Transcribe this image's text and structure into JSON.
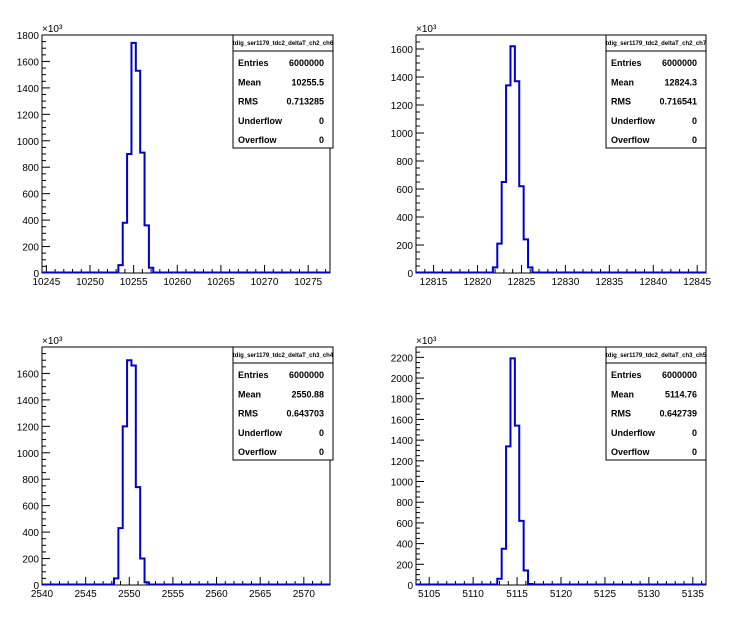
{
  "chart_data": [
    {
      "type": "histogram",
      "stats": {
        "name": "tdig_ser1179_tdc2_deltaT_ch2_ch6",
        "rows": [
          {
            "label": "Entries",
            "value": "6000000"
          },
          {
            "label": "Mean",
            "value": "10255.5"
          },
          {
            "label": "RMS",
            "value": "0.713285"
          },
          {
            "label": "Underflow",
            "value": "0"
          },
          {
            "label": "Overflow",
            "value": "0"
          }
        ]
      },
      "xlim": [
        10244.5,
        10277.5
      ],
      "ylim": [
        0,
        1800
      ],
      "y_multiplier": "×10³",
      "xticks": [
        "10245",
        "10250",
        "10255",
        "10260",
        "10265",
        "10270",
        "10275"
      ],
      "yticks": [
        "0",
        "200",
        "400",
        "600",
        "800",
        "1000",
        "1200",
        "1400",
        "1600",
        "1800"
      ],
      "bin_width": 0.5,
      "bins": [
        {
          "x": 10253.5,
          "y": 60
        },
        {
          "x": 10254.0,
          "y": 380
        },
        {
          "x": 10254.5,
          "y": 900
        },
        {
          "x": 10255.0,
          "y": 1740
        },
        {
          "x": 10255.5,
          "y": 1530
        },
        {
          "x": 10256.0,
          "y": 910
        },
        {
          "x": 10256.5,
          "y": 360
        },
        {
          "x": 10257.0,
          "y": 40
        }
      ]
    },
    {
      "type": "histogram",
      "stats": {
        "name": "tdig_ser1179_tdc2_deltaT_ch2_ch7",
        "rows": [
          {
            "label": "Entries",
            "value": "6000000"
          },
          {
            "label": "Mean",
            "value": "12824.3"
          },
          {
            "label": "RMS",
            "value": "0.716541"
          },
          {
            "label": "Underflow",
            "value": "0"
          },
          {
            "label": "Overflow",
            "value": "0"
          }
        ]
      },
      "xlim": [
        12813,
        12846
      ],
      "ylim": [
        0,
        1700
      ],
      "y_multiplier": "×10³",
      "xticks": [
        "12815",
        "12820",
        "12825",
        "12830",
        "12835",
        "12840",
        "12845"
      ],
      "yticks": [
        "0",
        "200",
        "400",
        "600",
        "800",
        "1000",
        "1200",
        "1400",
        "1600"
      ],
      "bin_width": 0.5,
      "bins": [
        {
          "x": 12822.0,
          "y": 40
        },
        {
          "x": 12822.5,
          "y": 210
        },
        {
          "x": 12823.0,
          "y": 650
        },
        {
          "x": 12823.5,
          "y": 1340
        },
        {
          "x": 12824.0,
          "y": 1620
        },
        {
          "x": 12824.5,
          "y": 1370
        },
        {
          "x": 12825.0,
          "y": 620
        },
        {
          "x": 12825.5,
          "y": 240
        },
        {
          "x": 12826.0,
          "y": 40
        }
      ]
    },
    {
      "type": "histogram",
      "stats": {
        "name": "tdig_ser1179_tdc2_deltaT_ch3_ch4",
        "rows": [
          {
            "label": "Entries",
            "value": "6000000"
          },
          {
            "label": "Mean",
            "value": "2550.88"
          },
          {
            "label": "RMS",
            "value": "0.643703"
          },
          {
            "label": "Underflow",
            "value": "0"
          },
          {
            "label": "Overflow",
            "value": "0"
          }
        ]
      },
      "xlim": [
        2540,
        2573
      ],
      "ylim": [
        0,
        1800
      ],
      "y_multiplier": "×10³",
      "xticks": [
        "2540",
        "2545",
        "2550",
        "2555",
        "2560",
        "2565",
        "2570"
      ],
      "yticks": [
        "0",
        "200",
        "400",
        "600",
        "800",
        "1000",
        "1200",
        "1400",
        "1600"
      ],
      "bin_width": 0.5,
      "bins": [
        {
          "x": 2548.5,
          "y": 50
        },
        {
          "x": 2549.0,
          "y": 430
        },
        {
          "x": 2549.5,
          "y": 1200
        },
        {
          "x": 2550.0,
          "y": 1700
        },
        {
          "x": 2550.5,
          "y": 1660
        },
        {
          "x": 2551.0,
          "y": 740
        },
        {
          "x": 2551.5,
          "y": 200
        },
        {
          "x": 2552.0,
          "y": 20
        }
      ]
    },
    {
      "type": "histogram",
      "stats": {
        "name": "tdig_ser1179_tdc2_deltaT_ch3_ch5",
        "rows": [
          {
            "label": "Entries",
            "value": "6000000"
          },
          {
            "label": "Mean",
            "value": "5114.76"
          },
          {
            "label": "RMS",
            "value": "0.642739"
          },
          {
            "label": "Underflow",
            "value": "0"
          },
          {
            "label": "Overflow",
            "value": "0"
          }
        ]
      },
      "xlim": [
        5103.5,
        5136.5
      ],
      "ylim": [
        0,
        2300
      ],
      "y_multiplier": "×10³",
      "xticks": [
        "5105",
        "5110",
        "5115",
        "5120",
        "5125",
        "5130",
        "5135"
      ],
      "yticks": [
        "0",
        "200",
        "400",
        "600",
        "800",
        "1000",
        "1200",
        "1400",
        "1600",
        "1800",
        "2000",
        "2200"
      ],
      "bin_width": 0.5,
      "bins": [
        {
          "x": 5113.0,
          "y": 60
        },
        {
          "x": 5113.5,
          "y": 350
        },
        {
          "x": 5114.0,
          "y": 1340
        },
        {
          "x": 5114.5,
          "y": 2190
        },
        {
          "x": 5115.0,
          "y": 1540
        },
        {
          "x": 5115.5,
          "y": 620
        },
        {
          "x": 5116.0,
          "y": 140
        },
        {
          "x": 5116.5,
          "y": 10
        }
      ]
    }
  ]
}
